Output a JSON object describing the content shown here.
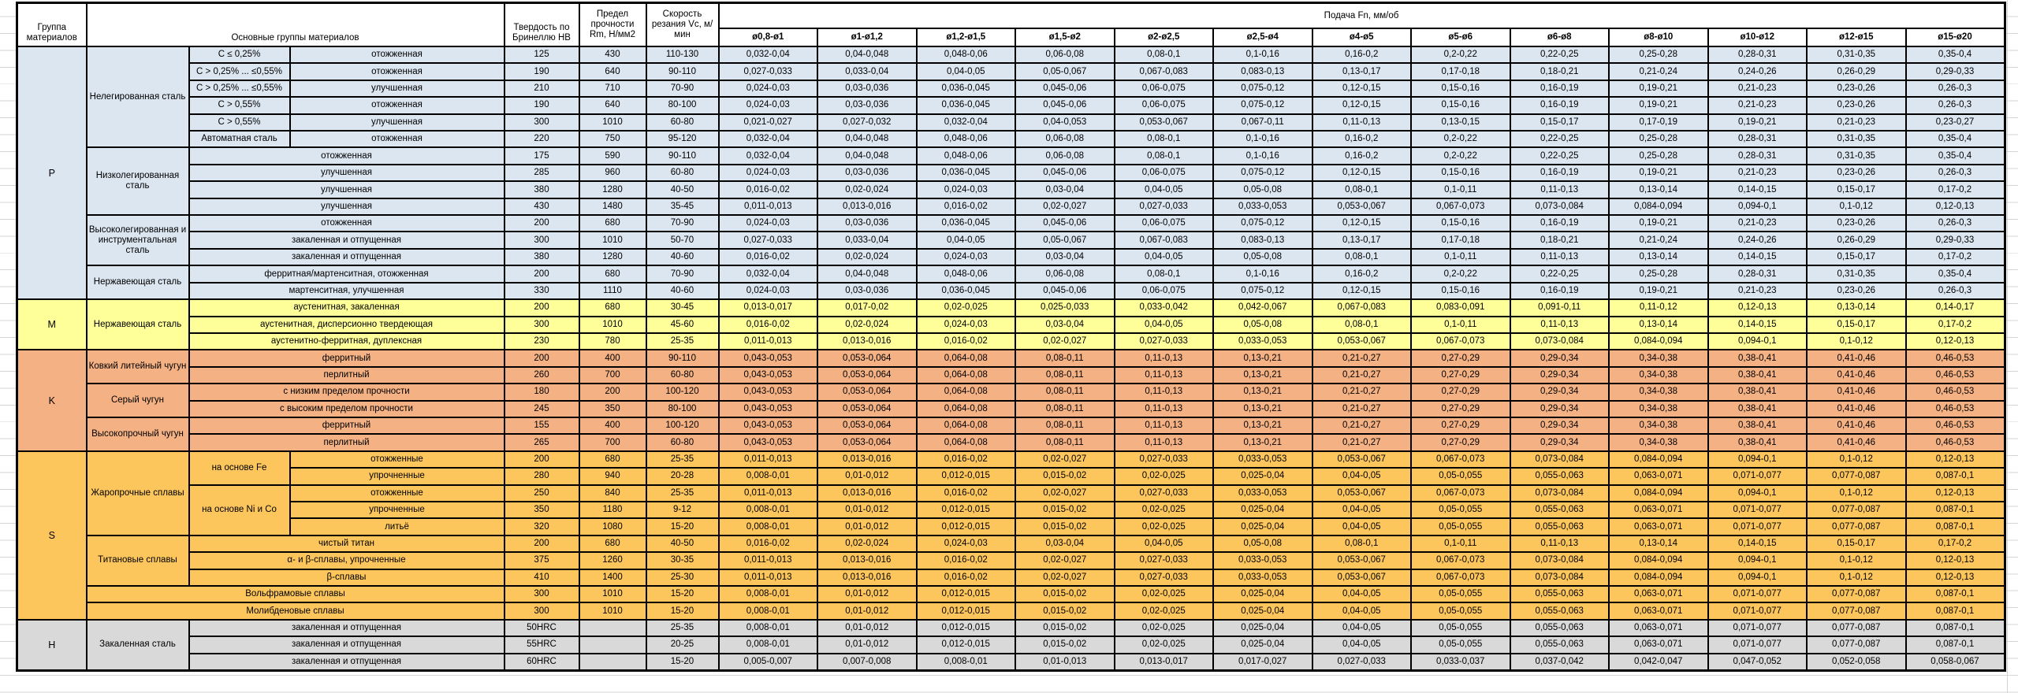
{
  "header": {
    "group": "Группа материалов",
    "main": "Основные группы материалов",
    "hardness": "Твердость по Бринеллю HB",
    "strength": "Предел прочности Rm, Н/мм2",
    "speed": "Скорость резания Vc, м/мин",
    "feed": "Подача Fn, мм/об",
    "feed_cols": [
      "ø0,8-ø1",
      "ø1-ø1,2",
      "ø1,2-ø1,5",
      "ø1,5-ø2",
      "ø2-ø2,5",
      "ø2,5-ø4",
      "ø4-ø5",
      "ø5-ø6",
      "ø6-ø8",
      "ø8-ø10",
      "ø10-ø12",
      "ø12-ø15",
      "ø15-ø20"
    ]
  },
  "colors": {
    "P": "#DCE6F1",
    "M": "#FFFF99",
    "K": "#F4B183",
    "S": "#FCC65C",
    "H": "#D9D9D9",
    "border": "#000000",
    "gridline": "#d4d4d4"
  },
  "feed_patterns": {
    "F1": [
      "0,032-0,04",
      "0,04-0,048",
      "0,048-0,06",
      "0,06-0,08",
      "0,08-0,1",
      "0,1-0,16",
      "0,16-0,2",
      "0,2-0,22",
      "0,22-0,25",
      "0,25-0,28",
      "0,28-0,31",
      "0,31-0,35",
      "0,35-0,4"
    ],
    "F2": [
      "0,027-0,033",
      "0,033-0,04",
      "0,04-0,05",
      "0,05-0,067",
      "0,067-0,083",
      "0,083-0,13",
      "0,13-0,17",
      "0,17-0,18",
      "0,18-0,21",
      "0,21-0,24",
      "0,24-0,26",
      "0,26-0,29",
      "0,29-0,33"
    ],
    "F3": [
      "0,024-0,03",
      "0,03-0,036",
      "0,036-0,045",
      "0,045-0,06",
      "0,06-0,075",
      "0,075-0,12",
      "0,12-0,15",
      "0,15-0,16",
      "0,16-0,19",
      "0,19-0,21",
      "0,21-0,23",
      "0,23-0,26",
      "0,26-0,3"
    ],
    "F5": [
      "0,021-0,027",
      "0,027-0,032",
      "0,032-0,04",
      "0,04-0,053",
      "0,053-0,067",
      "0,067-0,11",
      "0,11-0,13",
      "0,13-0,15",
      "0,15-0,17",
      "0,17-0,19",
      "0,19-0,21",
      "0,21-0,23",
      "0,23-0,27"
    ],
    "F9": [
      "0,016-0,02",
      "0,02-0,024",
      "0,024-0,03",
      "0,03-0,04",
      "0,04-0,05",
      "0,05-0,08",
      "0,08-0,1",
      "0,1-0,11",
      "0,11-0,13",
      "0,13-0,14",
      "0,14-0,15",
      "0,15-0,17",
      "0,17-0,2"
    ],
    "FA": [
      "0,011-0,013",
      "0,013-0,016",
      "0,016-0,02",
      "0,02-0,027",
      "0,027-0,033",
      "0,033-0,053",
      "0,053-0,067",
      "0,067-0,073",
      "0,073-0,084",
      "0,084-0,094",
      "0,094-0,1",
      "0,1-0,12",
      "0,12-0,13"
    ],
    "FM": [
      "0,013-0,017",
      "0,017-0,02",
      "0,02-0,025",
      "0,025-0,033",
      "0,033-0,042",
      "0,042-0,067",
      "0,067-0,083",
      "0,083-0,091",
      "0,091-0,11",
      "0,11-0,12",
      "0,12-0,13",
      "0,13-0,14",
      "0,14-0,17"
    ],
    "FK": [
      "0,043-0,053",
      "0,053-0,064",
      "0,064-0,08",
      "0,08-0,11",
      "0,11-0,13",
      "0,13-0,21",
      "0,21-0,27",
      "0,27-0,29",
      "0,29-0,34",
      "0,34-0,38",
      "0,38-0,41",
      "0,41-0,46",
      "0,46-0,53"
    ],
    "FB": [
      "0,008-0,01",
      "0,01-0,012",
      "0,012-0,015",
      "0,015-0,02",
      "0,02-0,025",
      "0,025-0,04",
      "0,04-0,05",
      "0,05-0,055",
      "0,055-0,063",
      "0,063-0,071",
      "0,071-0,077",
      "0,077-0,087",
      "0,087-0,1"
    ],
    "FD": [
      "0,005-0,007",
      "0,007-0,008",
      "0,008-0,01",
      "0,01-0,013",
      "0,013-0,017",
      "0,017-0,027",
      "0,027-0,033",
      "0,033-0,037",
      "0,037-0,042",
      "0,042-0,047",
      "0,047-0,052",
      "0,052-0,058",
      "0,058-0,067"
    ]
  },
  "rows": [
    {
      "grp": "P",
      "lead": [
        {
          "t": "P",
          "rs": 15
        },
        {
          "t": "Нелегированная сталь",
          "rs": 6
        },
        {
          "t": "C ≤ 0,25%"
        },
        {
          "t": "отожженная"
        }
      ],
      "hb": "125",
      "rm": "430",
      "vc": "110-130",
      "feeds": "F1"
    },
    {
      "grp": "P",
      "lead": [
        {
          "t": "C > 0,25% ... ≤0,55%"
        },
        {
          "t": "отожженная"
        }
      ],
      "hb": "190",
      "rm": "640",
      "vc": "90-110",
      "feeds": "F2"
    },
    {
      "grp": "P",
      "lead": [
        {
          "t": "C > 0,25% ... ≤0,55%"
        },
        {
          "t": "улучшенная"
        }
      ],
      "hb": "210",
      "rm": "710",
      "vc": "70-90",
      "feeds": "F3"
    },
    {
      "grp": "P",
      "lead": [
        {
          "t": "C > 0,55%"
        },
        {
          "t": "отожженная"
        }
      ],
      "hb": "190",
      "rm": "640",
      "vc": "80-100",
      "feeds": "F3"
    },
    {
      "grp": "P",
      "lead": [
        {
          "t": "C > 0,55%"
        },
        {
          "t": "улучшенная"
        }
      ],
      "hb": "300",
      "rm": "1010",
      "vc": "60-80",
      "feeds": "F5"
    },
    {
      "grp": "P",
      "lead": [
        {
          "t": "Автоматная сталь"
        },
        {
          "t": "отожженная"
        }
      ],
      "hb": "220",
      "rm": "750",
      "vc": "95-120",
      "feeds": "F1"
    },
    {
      "grp": "P",
      "lead": [
        {
          "t": "Низколегированная сталь",
          "rs": 4
        },
        {
          "t": "отожженная",
          "cs": 2
        }
      ],
      "hb": "175",
      "rm": "590",
      "vc": "90-110",
      "feeds": "F1"
    },
    {
      "grp": "P",
      "lead": [
        {
          "t": "улучшенная",
          "cs": 2
        }
      ],
      "hb": "285",
      "rm": "960",
      "vc": "60-80",
      "feeds": "F3"
    },
    {
      "grp": "P",
      "lead": [
        {
          "t": "улучшенная",
          "cs": 2
        }
      ],
      "hb": "380",
      "rm": "1280",
      "vc": "40-50",
      "feeds": "F9"
    },
    {
      "grp": "P",
      "lead": [
        {
          "t": "улучшенная",
          "cs": 2
        }
      ],
      "hb": "430",
      "rm": "1480",
      "vc": "35-45",
      "feeds": "FA"
    },
    {
      "grp": "P",
      "lead": [
        {
          "t": "Высоколегированная и инструментальная сталь",
          "rs": 3
        },
        {
          "t": "отожженная",
          "cs": 2
        }
      ],
      "hb": "200",
      "rm": "680",
      "vc": "70-90",
      "feeds": "F3"
    },
    {
      "grp": "P",
      "lead": [
        {
          "t": "закаленная и отпущенная",
          "cs": 2
        }
      ],
      "hb": "300",
      "rm": "1010",
      "vc": "50-70",
      "feeds": "F2"
    },
    {
      "grp": "P",
      "lead": [
        {
          "t": "закаленная и отпущенная",
          "cs": 2
        }
      ],
      "hb": "380",
      "rm": "1280",
      "vc": "40-60",
      "feeds": "F9"
    },
    {
      "grp": "P",
      "lead": [
        {
          "t": "Нержавеющая сталь",
          "rs": 2
        },
        {
          "t": "ферритная/мартенситная, отожженная",
          "cs": 2
        }
      ],
      "hb": "200",
      "rm": "680",
      "vc": "70-90",
      "feeds": "F1"
    },
    {
      "grp": "P",
      "lead": [
        {
          "t": "мартенситная, улучшенная",
          "cs": 2
        }
      ],
      "hb": "330",
      "rm": "1110",
      "vc": "40-60",
      "feeds": "F3"
    },
    {
      "grp": "M",
      "lead": [
        {
          "t": "M",
          "rs": 3
        },
        {
          "t": "Нержавеющая сталь",
          "rs": 3
        },
        {
          "t": "аустенитная, закаленная",
          "cs": 2
        }
      ],
      "hb": "200",
      "rm": "680",
      "vc": "30-45",
      "feeds": "FM"
    },
    {
      "grp": "M",
      "lead": [
        {
          "t": "аустенитная, дисперсионно твердеющая",
          "cs": 2
        }
      ],
      "hb": "300",
      "rm": "1010",
      "vc": "45-60",
      "feeds": "F9"
    },
    {
      "grp": "M",
      "lead": [
        {
          "t": "аустенитно-ферритная, дуплексная",
          "cs": 2
        }
      ],
      "hb": "230",
      "rm": "780",
      "vc": "25-35",
      "feeds": "FA"
    },
    {
      "grp": "K",
      "lead": [
        {
          "t": "K",
          "rs": 6
        },
        {
          "t": "Ковкий литейный чугун",
          "rs": 2
        },
        {
          "t": "ферритный",
          "cs": 2
        }
      ],
      "hb": "200",
      "rm": "400",
      "vc": "90-110",
      "feeds": "FK"
    },
    {
      "grp": "K",
      "lead": [
        {
          "t": "перлитный",
          "cs": 2
        }
      ],
      "hb": "260",
      "rm": "700",
      "vc": "60-80",
      "feeds": "FK"
    },
    {
      "grp": "K",
      "lead": [
        {
          "t": "Серый чугун",
          "rs": 2
        },
        {
          "t": "с низким пределом прочности",
          "cs": 2
        }
      ],
      "hb": "180",
      "rm": "200",
      "vc": "100-120",
      "feeds": "FK"
    },
    {
      "grp": "K",
      "lead": [
        {
          "t": "с высоким пределом прочности",
          "cs": 2
        }
      ],
      "hb": "245",
      "rm": "350",
      "vc": "80-100",
      "feeds": "FK"
    },
    {
      "grp": "K",
      "lead": [
        {
          "t": "Высокопрочный чугун",
          "rs": 2
        },
        {
          "t": "ферритный",
          "cs": 2
        }
      ],
      "hb": "155",
      "rm": "400",
      "vc": "100-120",
      "feeds": "FK"
    },
    {
      "grp": "K",
      "lead": [
        {
          "t": "перлитный",
          "cs": 2
        }
      ],
      "hb": "265",
      "rm": "700",
      "vc": "60-80",
      "feeds": "FK"
    },
    {
      "grp": "S",
      "lead": [
        {
          "t": "S",
          "rs": 10
        },
        {
          "t": "Жаропрочные сплавы",
          "rs": 5
        },
        {
          "t": "на основе Fe",
          "rs": 2
        },
        {
          "t": "отожженные"
        }
      ],
      "hb": "200",
      "rm": "680",
      "vc": "25-35",
      "feeds": "FA"
    },
    {
      "grp": "S",
      "lead": [
        {
          "t": "упрочненные"
        }
      ],
      "hb": "280",
      "rm": "940",
      "vc": "20-28",
      "feeds": "FB"
    },
    {
      "grp": "S",
      "lead": [
        {
          "t": "на основе Ni и Co",
          "rs": 3
        },
        {
          "t": "отожженные"
        }
      ],
      "hb": "250",
      "rm": "840",
      "vc": "25-35",
      "feeds": "FA"
    },
    {
      "grp": "S",
      "lead": [
        {
          "t": "упрочненные"
        }
      ],
      "hb": "350",
      "rm": "1180",
      "vc": "9-12",
      "feeds": "FB"
    },
    {
      "grp": "S",
      "lead": [
        {
          "t": "литьё"
        }
      ],
      "hb": "320",
      "rm": "1080",
      "vc": "15-20",
      "feeds": "FB"
    },
    {
      "grp": "S",
      "lead": [
        {
          "t": "Титановые сплавы",
          "rs": 3
        },
        {
          "t": "чистый титан",
          "cs": 2
        }
      ],
      "hb": "200",
      "rm": "680",
      "vc": "40-50",
      "feeds": "F9"
    },
    {
      "grp": "S",
      "lead": [
        {
          "t": "α- и β-сплавы, упрочненные",
          "cs": 2
        }
      ],
      "hb": "375",
      "rm": "1260",
      "vc": "30-35",
      "feeds": "FA"
    },
    {
      "grp": "S",
      "lead": [
        {
          "t": "β-сплавы",
          "cs": 2
        }
      ],
      "hb": "410",
      "rm": "1400",
      "vc": "25-30",
      "feeds": "FA"
    },
    {
      "grp": "S",
      "lead": [
        {
          "t": "Вольфрамовые сплавы",
          "cs": 3
        }
      ],
      "hb": "300",
      "rm": "1010",
      "vc": "15-20",
      "feeds": "FB"
    },
    {
      "grp": "S",
      "lead": [
        {
          "t": "Молибденовые сплавы",
          "cs": 3
        }
      ],
      "hb": "300",
      "rm": "1010",
      "vc": "15-20",
      "feeds": "FB"
    },
    {
      "grp": "H",
      "lead": [
        {
          "t": "H",
          "rs": 3
        },
        {
          "t": "Закаленная сталь",
          "rs": 3
        },
        {
          "t": "закаленная и отпущенная",
          "cs": 2
        }
      ],
      "hb": "50HRC",
      "rm": "",
      "vc": "25-35",
      "feeds": "FB"
    },
    {
      "grp": "H",
      "lead": [
        {
          "t": "закаленная и отпущенная",
          "cs": 2
        }
      ],
      "hb": "55HRC",
      "rm": "",
      "vc": "20-25",
      "feeds": "FB"
    },
    {
      "grp": "H",
      "lead": [
        {
          "t": "закаленная и отпущенная",
          "cs": 2
        }
      ],
      "hb": "60HRC",
      "rm": "",
      "vc": "15-20",
      "feeds": "FD"
    }
  ]
}
